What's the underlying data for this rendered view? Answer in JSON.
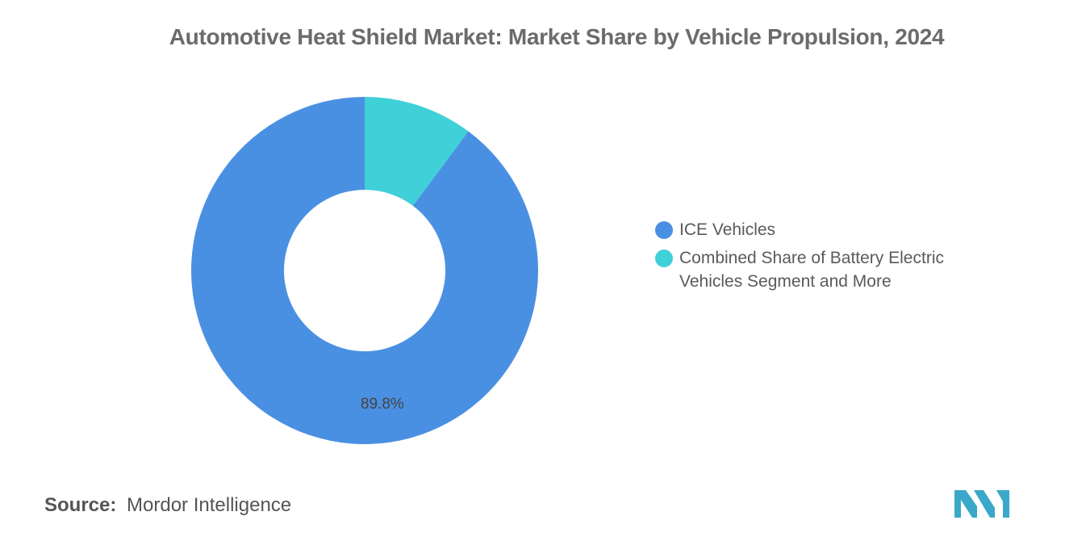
{
  "title": "Automotive Heat Shield Market: Market Share by Vehicle Propulsion, 2024",
  "source": {
    "label": "Source:",
    "value": "Mordor Intelligence"
  },
  "colors": {
    "ice": "#4a90e2",
    "bev": "#40d0d8",
    "logo": "#3aa8c8"
  },
  "chart_data": {
    "type": "pie",
    "title": "Automotive Heat Shield Market: Market Share by Vehicle Propulsion, 2024",
    "donut": true,
    "legend_position": "right",
    "slices": [
      {
        "label": "ICE Vehicles",
        "value": 89.8,
        "data_label": "89.8%",
        "color": "#4a90e2"
      },
      {
        "label": "Combined Share of Battery Electric Vehicles Segment and More",
        "value": 10.2,
        "data_label": "",
        "color": "#40d0d8"
      }
    ]
  }
}
